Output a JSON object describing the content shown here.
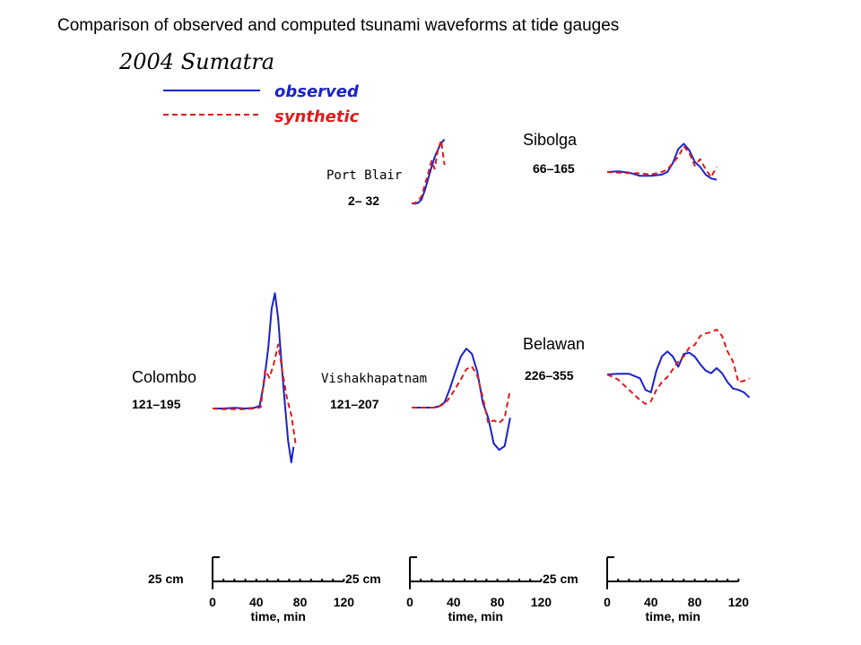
{
  "page_title": "Comparison of observed and computed tsunami waveforms at tide gauges",
  "colors": {
    "observed": "#1a22c8",
    "synthetic": "#e01a1a",
    "axes": "#000000"
  },
  "chart_data": {
    "type": "line",
    "title": "2004 Sumatra",
    "legend": [
      {
        "name": "observed",
        "style": "solid",
        "color": "#1a22c8"
      },
      {
        "name": "synthetic",
        "style": "dashed",
        "color": "#e01a1a"
      }
    ],
    "x_unit": "time, min",
    "y_unit": "cm",
    "scale_bars": [
      {
        "amplitude_label": "25 cm",
        "amplitude_cm": 25,
        "ticks": [
          "0",
          "40",
          "80",
          "120"
        ],
        "xlabel": "time, min"
      },
      {
        "amplitude_label": "25 cm",
        "amplitude_cm": 25,
        "ticks": [
          "0",
          "40",
          "80",
          "120"
        ],
        "xlabel": "time, min"
      },
      {
        "amplitude_label": "25 cm",
        "amplitude_cm": 25,
        "ticks": [
          "0",
          "40",
          "80",
          "120"
        ],
        "xlabel": "time, min"
      }
    ],
    "stations": [
      {
        "name": "Colombo",
        "window": "121–195",
        "scale_col": 0,
        "observed": {
          "x": [
            0,
            10,
            20,
            30,
            38,
            43,
            47,
            51,
            54,
            57,
            60,
            63,
            66,
            69,
            72,
            74
          ],
          "y": [
            0,
            0,
            0.5,
            0,
            0.5,
            2,
            20,
            48,
            78,
            90,
            70,
            35,
            5,
            -25,
            -42,
            -30
          ]
        },
        "synthetic": {
          "x": [
            0,
            10,
            20,
            30,
            38,
            44,
            48,
            52,
            56,
            60,
            64,
            68,
            72,
            76
          ],
          "y": [
            0,
            -0.5,
            -0.5,
            -0.5,
            0,
            1,
            30,
            24,
            35,
            50,
            28,
            8,
            -5,
            -28
          ]
        }
      },
      {
        "name": "Vishakhapatnam",
        "window": "121–207",
        "scale_col": 1,
        "observed": {
          "x": [
            0,
            10,
            20,
            25,
            30,
            35,
            40,
            45,
            50,
            55,
            60,
            65,
            70,
            75,
            80,
            85,
            90
          ],
          "y": [
            0,
            0,
            0,
            1,
            4,
            15,
            28,
            40,
            46,
            42,
            28,
            4,
            -8,
            -28,
            -33,
            -30,
            -8
          ]
        },
        "synthetic": {
          "x": [
            0,
            10,
            20,
            25,
            30,
            35,
            40,
            45,
            50,
            55,
            60,
            65,
            70,
            75,
            80,
            85,
            90
          ],
          "y": [
            0,
            0,
            0,
            1,
            3,
            8,
            15,
            22,
            30,
            32,
            25,
            8,
            -12,
            -10,
            -12,
            -8,
            14
          ]
        }
      },
      {
        "name": "Port Blair",
        "window": "2– 32",
        "scale_col": 1,
        "observed": {
          "x": [
            0,
            3,
            6,
            9,
            12,
            15,
            18,
            21,
            24,
            27,
            30
          ],
          "y": [
            0,
            -0.3,
            0.4,
            3,
            10,
            19,
            28,
            36,
            42,
            47,
            50
          ]
        },
        "synthetic": {
          "x": [
            0,
            3,
            6,
            9,
            12,
            15,
            18,
            21,
            24,
            27,
            30
          ],
          "y": [
            0,
            0.2,
            2.2,
            5.5,
            14,
            23,
            33,
            27,
            42,
            49,
            30
          ]
        }
      },
      {
        "name": "Sibolga",
        "window": "66–165",
        "scale_col": 2,
        "observed": {
          "x": [
            0,
            10,
            20,
            30,
            40,
            50,
            55,
            60,
            65,
            70,
            75,
            80,
            85,
            90,
            95,
            100
          ],
          "y": [
            0,
            0.5,
            -0.5,
            -3,
            -3,
            -2,
            0,
            7,
            18,
            22,
            17,
            8,
            4,
            -2,
            -5,
            -6
          ]
        },
        "synthetic": {
          "x": [
            0,
            10,
            20,
            30,
            40,
            50,
            55,
            60,
            65,
            70,
            75,
            80,
            85,
            90,
            95,
            100
          ],
          "y": [
            0,
            -0.5,
            -1,
            -1,
            -2,
            0,
            2,
            7,
            12,
            20,
            15,
            5,
            10,
            2,
            -4,
            4
          ]
        }
      },
      {
        "name": "Belawan",
        "window": "226–355",
        "scale_col": 2,
        "observed": {
          "x": [
            0,
            10,
            20,
            30,
            35,
            40,
            45,
            50,
            55,
            60,
            65,
            70,
            75,
            80,
            85,
            90,
            95,
            100,
            105,
            110,
            115,
            120,
            125,
            130
          ],
          "y": [
            0,
            0.5,
            0.5,
            -3,
            -12,
            -14,
            3,
            14,
            18,
            14,
            6,
            16,
            17,
            14,
            8,
            3,
            1,
            5,
            1,
            -6,
            -11,
            -12,
            -14,
            -18
          ]
        },
        "synthetic": {
          "x": [
            0,
            10,
            20,
            30,
            35,
            40,
            45,
            50,
            55,
            60,
            65,
            70,
            75,
            80,
            85,
            90,
            95,
            100,
            105,
            110,
            115,
            120,
            125,
            130
          ],
          "y": [
            0,
            -4,
            -12,
            -20,
            -23,
            -21,
            -12,
            -6,
            -2,
            4,
            10,
            14,
            21,
            23,
            30,
            32,
            33,
            35,
            30,
            18,
            10,
            -6,
            -5,
            -3
          ]
        }
      }
    ]
  }
}
